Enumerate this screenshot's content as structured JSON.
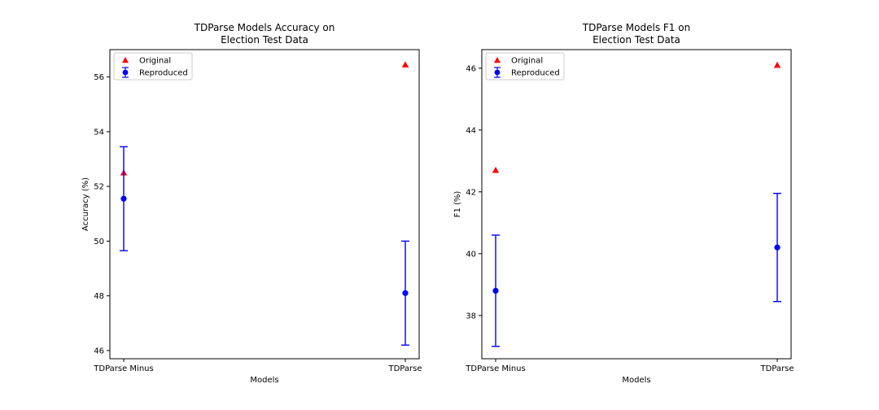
{
  "chart_data": [
    {
      "type": "scatter",
      "title": [
        "TDParse Models Accuracy on",
        "Election Test Data"
      ],
      "xlabel": "Models",
      "ylabel": "Accuracy (%)",
      "categories": [
        "TDParse Minus",
        "TDParse"
      ],
      "ylim": [
        45.7,
        57.0
      ],
      "yticks": [
        46,
        48,
        50,
        52,
        54,
        56
      ],
      "grid": false,
      "legend": "top-left",
      "series": [
        {
          "name": "Original",
          "marker": "triangle",
          "color": "#ff0000",
          "values": [
            52.5,
            56.45
          ]
        },
        {
          "name": "Reproduced",
          "marker": "circle",
          "color": "#0000ff",
          "values": [
            51.55,
            48.1
          ],
          "error": [
            1.9,
            1.9
          ]
        }
      ]
    },
    {
      "type": "scatter",
      "title": [
        "TDParse Models F1 on",
        "Election Test Data"
      ],
      "xlabel": "Models",
      "ylabel": "F1 (%)",
      "categories": [
        "TDParse Minus",
        "TDParse"
      ],
      "ylim": [
        36.6,
        46.6
      ],
      "yticks": [
        38,
        40,
        42,
        44,
        46
      ],
      "grid": false,
      "legend": "top-left",
      "series": [
        {
          "name": "Original",
          "marker": "triangle",
          "color": "#ff0000",
          "values": [
            42.7,
            46.1
          ]
        },
        {
          "name": "Reproduced",
          "marker": "circle",
          "color": "#0000ff",
          "values": [
            38.8,
            40.2
          ],
          "error": [
            1.8,
            1.75
          ]
        }
      ]
    }
  ]
}
